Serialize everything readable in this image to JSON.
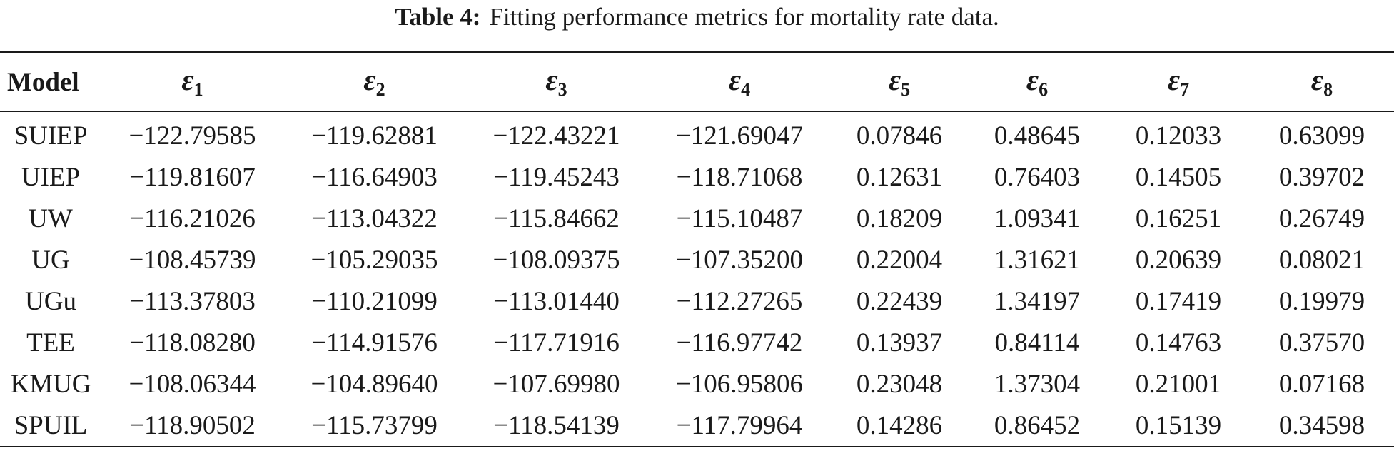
{
  "caption": {
    "label": "Table 4:",
    "text": "Fitting performance metrics for mortality rate data."
  },
  "table": {
    "model_header": "Model",
    "metric_symbol": "ε",
    "metric_subscripts": [
      "1",
      "2",
      "3",
      "4",
      "5",
      "6",
      "7",
      "8"
    ],
    "rows": [
      {
        "model": "SUIEP",
        "values": [
          "−122.79585",
          "−119.62881",
          "−122.43221",
          "−121.69047",
          "0.07846",
          "0.48645",
          "0.12033",
          "0.63099"
        ]
      },
      {
        "model": "UIEP",
        "values": [
          "−119.81607",
          "−116.64903",
          "−119.45243",
          "−118.71068",
          "0.12631",
          "0.76403",
          "0.14505",
          "0.39702"
        ]
      },
      {
        "model": "UW",
        "values": [
          "−116.21026",
          "−113.04322",
          "−115.84662",
          "−115.10487",
          "0.18209",
          "1.09341",
          "0.16251",
          "0.26749"
        ]
      },
      {
        "model": "UG",
        "values": [
          "−108.45739",
          "−105.29035",
          "−108.09375",
          "−107.35200",
          "0.22004",
          "1.31621",
          "0.20639",
          "0.08021"
        ]
      },
      {
        "model": "UGu",
        "values": [
          "−113.37803",
          "−110.21099",
          "−113.01440",
          "−112.27265",
          "0.22439",
          "1.34197",
          "0.17419",
          "0.19979"
        ]
      },
      {
        "model": "TEE",
        "values": [
          "−118.08280",
          "−114.91576",
          "−117.71916",
          "−116.97742",
          "0.13937",
          "0.84114",
          "0.14763",
          "0.37570"
        ]
      },
      {
        "model": "KMUG",
        "values": [
          "−108.06344",
          "−104.89640",
          "−107.69980",
          "−106.95806",
          "0.23048",
          "1.37304",
          "0.21001",
          "0.07168"
        ]
      },
      {
        "model": "SPUIL",
        "values": [
          "−118.90502",
          "−115.73799",
          "−118.54139",
          "−117.79964",
          "0.14286",
          "0.86452",
          "0.15139",
          "0.34598"
        ]
      }
    ]
  }
}
